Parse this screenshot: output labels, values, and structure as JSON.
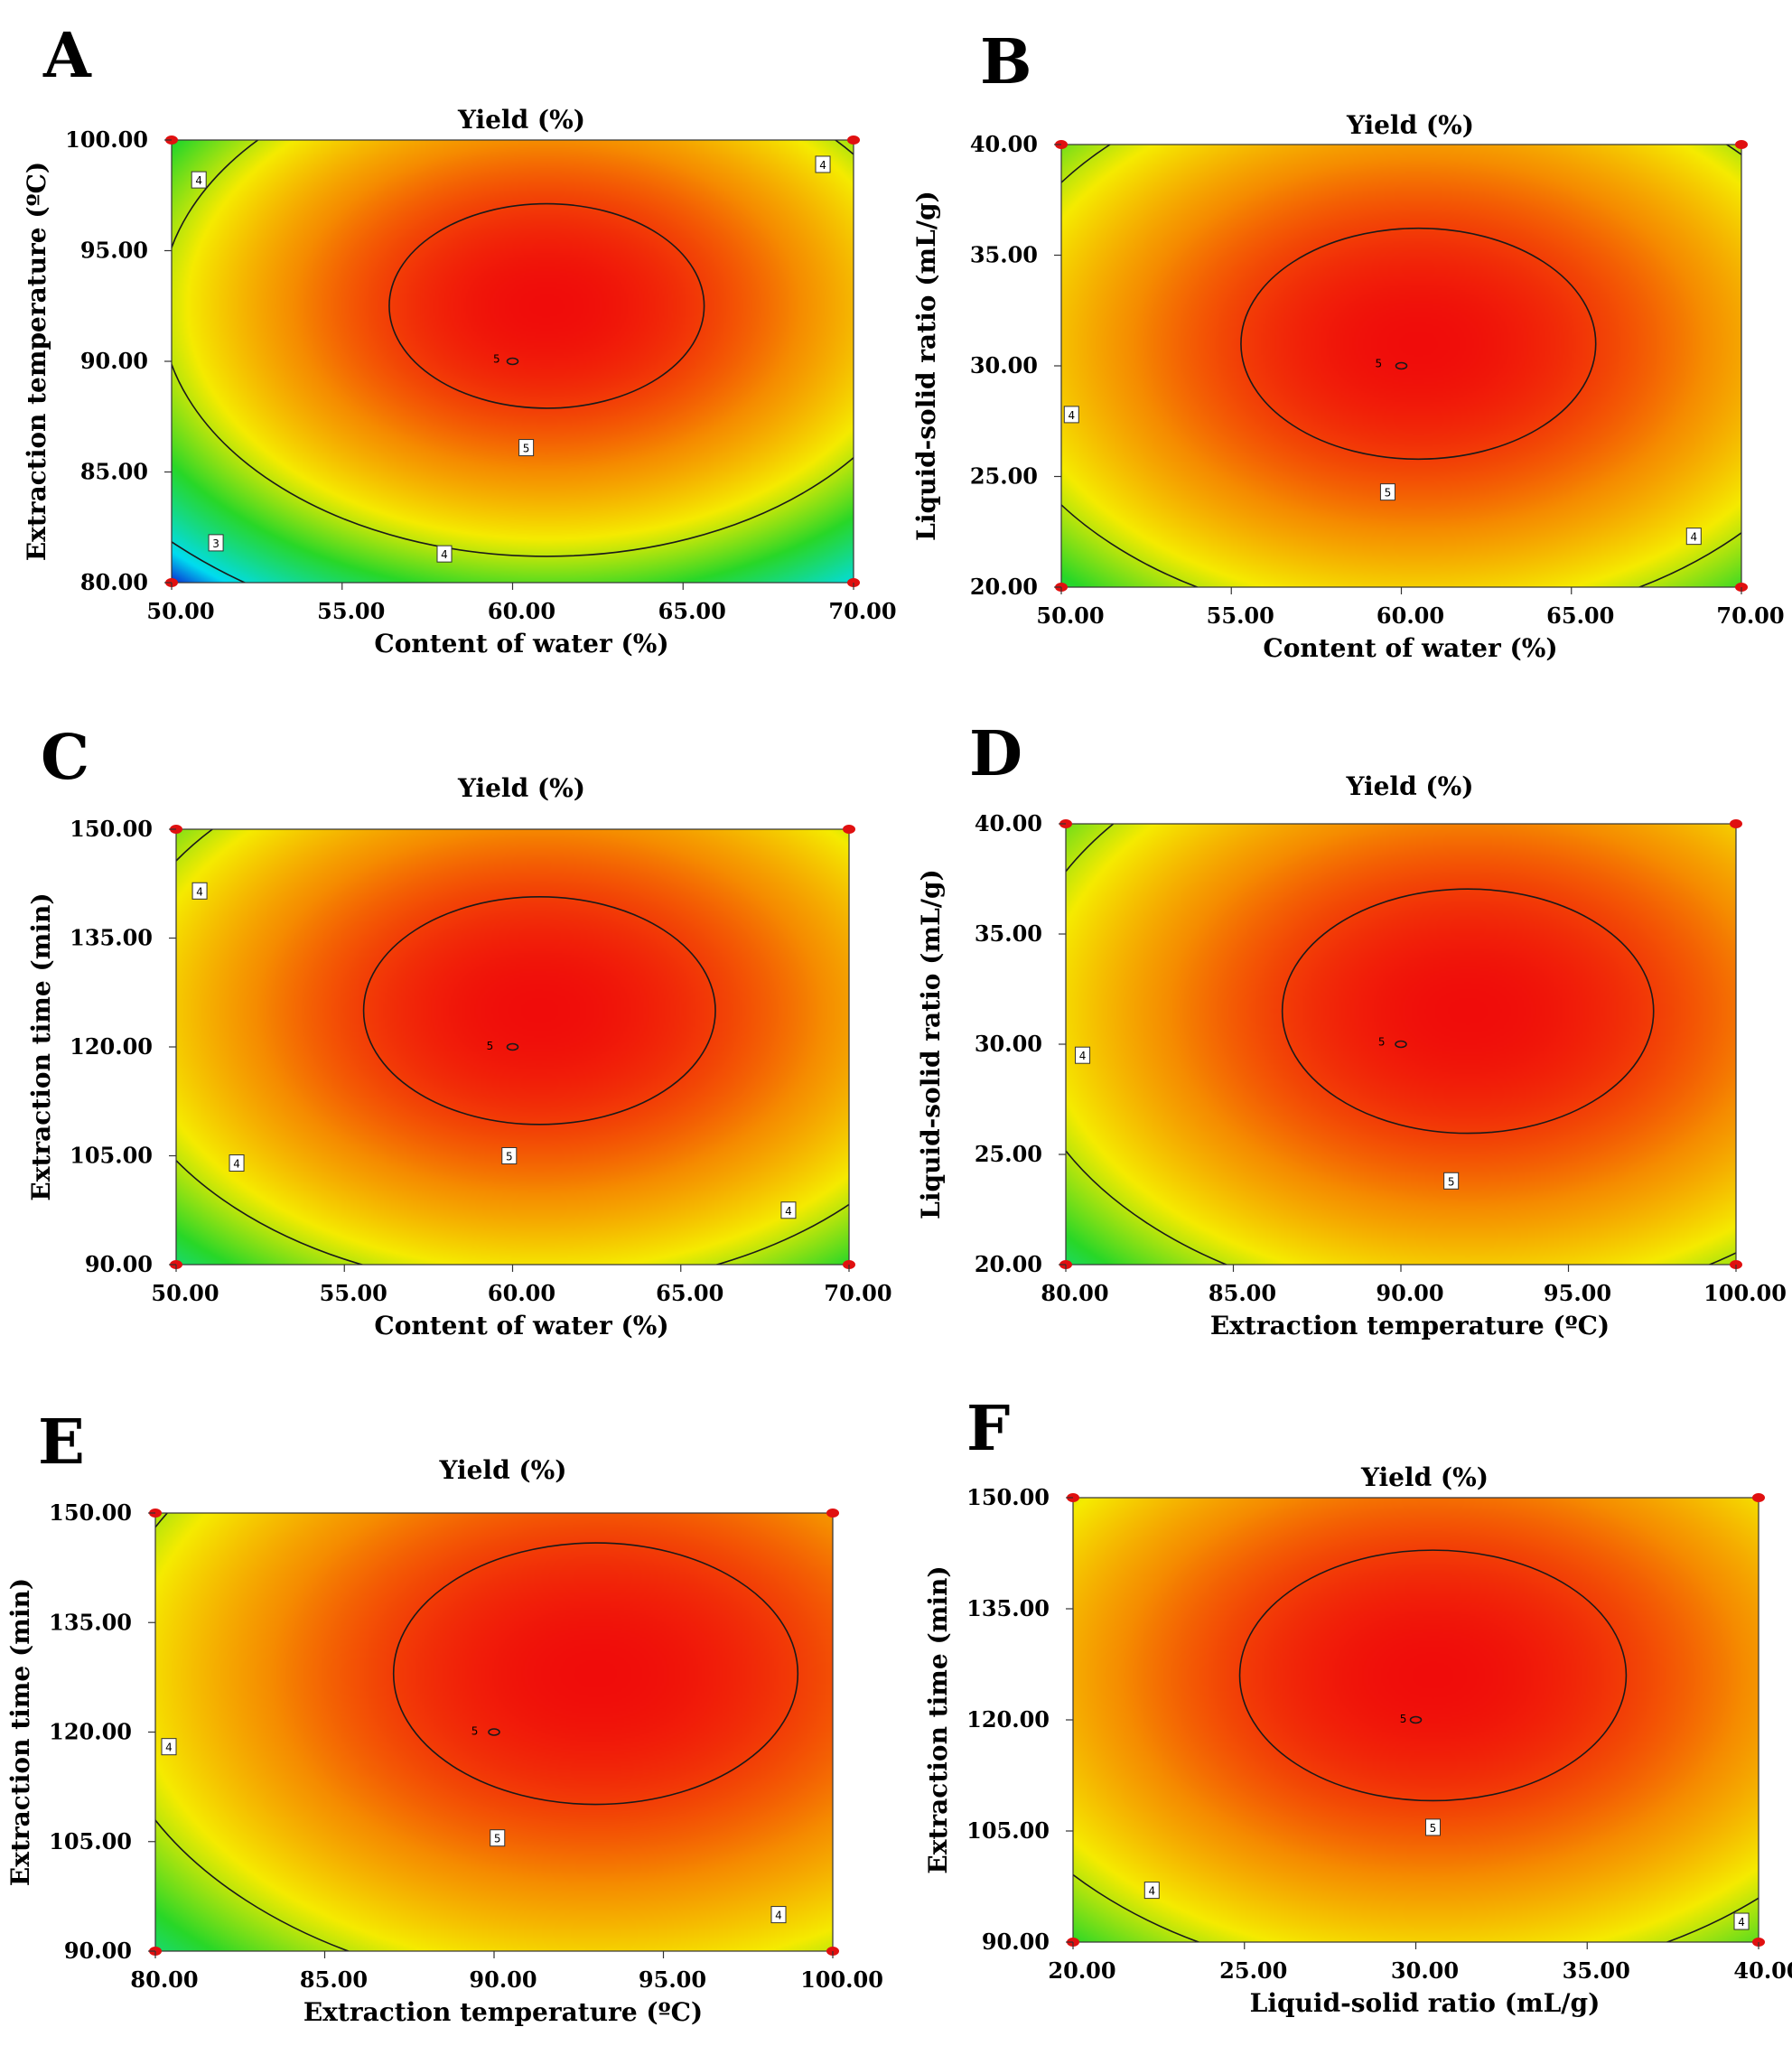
{
  "chart_data": [
    {
      "panel": "A",
      "type": "heatmap",
      "title": "Yield (%)",
      "xlabel": "Content of water (%)",
      "ylabel": "Extraction temperature (ºC)",
      "xlim": [
        50,
        70
      ],
      "ylim": [
        80,
        100
      ],
      "xticks": [
        "50.00",
        "55.00",
        "60.00",
        "65.00",
        "70.00"
      ],
      "yticks": [
        "80.00",
        "85.00",
        "90.00",
        "95.00",
        "100.00"
      ],
      "optimum": [
        61,
        92.5
      ],
      "colorscale_low": 2.6,
      "contour_levels": [
        3,
        4,
        5
      ],
      "contour_labels": [
        {
          "text": "4",
          "x": 50.8,
          "y": 98.2
        },
        {
          "text": "4",
          "x": 69.1,
          "y": 98.9
        },
        {
          "text": "5",
          "x": 60.4,
          "y": 86.1
        },
        {
          "text": "4",
          "x": 58.0,
          "y": 81.3
        },
        {
          "text": "3",
          "x": 51.3,
          "y": 81.8
        },
        {
          "text": "5",
          "x": 59.8,
          "y": 90.1
        }
      ],
      "design_points": [
        [
          50,
          100
        ],
        [
          70,
          100
        ],
        [
          50,
          80
        ],
        [
          70,
          80
        ]
      ]
    },
    {
      "panel": "B",
      "type": "heatmap",
      "title": "Yield (%)",
      "xlabel": "Content of water (%)",
      "ylabel": "Liquid-solid ratio (mL/g)",
      "xlim": [
        50,
        70
      ],
      "ylim": [
        20,
        40
      ],
      "xticks": [
        "50.00",
        "55.00",
        "60.00",
        "65.00",
        "70.00"
      ],
      "yticks": [
        "20.00",
        "25.00",
        "30.00",
        "35.00",
        "40.00"
      ],
      "optimum": [
        60.5,
        31
      ],
      "colorscale_low": 3.5,
      "contour_levels": [
        4,
        5
      ],
      "contour_labels": [
        {
          "text": "4",
          "x": 50.3,
          "y": 27.8
        },
        {
          "text": "5",
          "x": 59.6,
          "y": 24.3
        },
        {
          "text": "4",
          "x": 68.6,
          "y": 22.3
        },
        {
          "text": "5",
          "x": 59.6,
          "y": 30.1
        }
      ],
      "design_points": [
        [
          50,
          40
        ],
        [
          70,
          40
        ],
        [
          50,
          20
        ],
        [
          70,
          20
        ]
      ]
    },
    {
      "panel": "C",
      "type": "heatmap",
      "title": "Yield (%)",
      "xlabel": "Content of water (%)",
      "ylabel": "Extraction time (min)",
      "xlim": [
        50,
        70
      ],
      "ylim": [
        90,
        150
      ],
      "xticks": [
        "50.00",
        "55.00",
        "60.00",
        "65.00",
        "70.00"
      ],
      "yticks": [
        "90.00",
        "105.00",
        "120.00",
        "135.00",
        "150.00"
      ],
      "optimum": [
        60.8,
        125
      ],
      "colorscale_low": 3.35,
      "contour_levels": [
        4,
        5
      ],
      "contour_labels": [
        {
          "text": "4",
          "x": 50.7,
          "y": 141.5
        },
        {
          "text": "4",
          "x": 51.8,
          "y": 104.0
        },
        {
          "text": "5",
          "x": 59.9,
          "y": 105.0
        },
        {
          "text": "4",
          "x": 68.2,
          "y": 97.5
        },
        {
          "text": "5",
          "x": 59.6,
          "y": 120.1
        }
      ],
      "design_points": [
        [
          50,
          150
        ],
        [
          70,
          150
        ],
        [
          50,
          90
        ],
        [
          70,
          90
        ]
      ]
    },
    {
      "panel": "D",
      "type": "heatmap",
      "title": "Yield (%)",
      "xlabel": "Extraction temperature (ºC)",
      "ylabel": "Liquid-solid ratio (mL/g)",
      "xlim": [
        80,
        100
      ],
      "ylim": [
        20,
        40
      ],
      "xticks": [
        "80.00",
        "85.00",
        "90.00",
        "95.00",
        "100.00"
      ],
      "yticks": [
        "20.00",
        "25.00",
        "30.00",
        "35.00",
        "40.00"
      ],
      "optimum": [
        92,
        31.5
      ],
      "colorscale_low": 3.4,
      "contour_levels": [
        4,
        5
      ],
      "contour_labels": [
        {
          "text": "4",
          "x": 80.5,
          "y": 29.5
        },
        {
          "text": "5",
          "x": 91.5,
          "y": 23.8
        },
        {
          "text": "5",
          "x": 89.7,
          "y": 30.1
        }
      ],
      "design_points": [
        [
          80,
          40
        ],
        [
          100,
          40
        ],
        [
          80,
          20
        ],
        [
          100,
          20
        ]
      ]
    },
    {
      "panel": "E",
      "type": "heatmap",
      "title": "Yield (%)",
      "xlabel": "Extraction temperature (ºC)",
      "ylabel": "Extraction time (min)",
      "xlim": [
        80,
        100
      ],
      "ylim": [
        90,
        150
      ],
      "xticks": [
        "80.00",
        "85.00",
        "90.00",
        "95.00",
        "100.00"
      ],
      "yticks": [
        "90.00",
        "105.00",
        "120.00",
        "135.00",
        "150.00"
      ],
      "optimum": [
        93,
        128
      ],
      "colorscale_low": 3.35,
      "contour_levels": [
        4,
        5
      ],
      "contour_labels": [
        {
          "text": "4",
          "x": 80.4,
          "y": 118.0
        },
        {
          "text": "5",
          "x": 90.1,
          "y": 105.5
        },
        {
          "text": "4",
          "x": 98.4,
          "y": 95.0
        },
        {
          "text": "5",
          "x": 89.7,
          "y": 120.1
        }
      ],
      "design_points": [
        [
          80,
          150
        ],
        [
          100,
          150
        ],
        [
          80,
          90
        ],
        [
          100,
          90
        ]
      ]
    },
    {
      "panel": "F",
      "type": "heatmap",
      "title": "Yield (%)",
      "xlabel": "Liquid-solid ratio (mL/g)",
      "ylabel": "Extraction time (min)",
      "xlim": [
        20,
        40
      ],
      "ylim": [
        90,
        150
      ],
      "xticks": [
        "20.00",
        "25.00",
        "30.00",
        "35.00",
        "40.00"
      ],
      "yticks": [
        "90.00",
        "105.00",
        "120.00",
        "135.00",
        "150.00"
      ],
      "optimum": [
        30.5,
        126
      ],
      "colorscale_low": 3.6,
      "contour_levels": [
        4,
        5
      ],
      "contour_labels": [
        {
          "text": "4",
          "x": 22.3,
          "y": 97.0
        },
        {
          "text": "5",
          "x": 30.5,
          "y": 105.5
        },
        {
          "text": "4",
          "x": 39.5,
          "y": 92.8
        },
        {
          "text": "5",
          "x": 29.9,
          "y": 120.1
        }
      ],
      "design_points": [
        [
          20,
          150
        ],
        [
          40,
          150
        ],
        [
          20,
          90
        ],
        [
          40,
          90
        ]
      ]
    }
  ]
}
